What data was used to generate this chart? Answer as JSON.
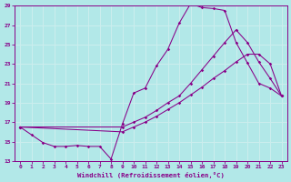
{
  "xlabel": "Windchill (Refroidissement éolien,°C)",
  "bg_color": "#b2e8e8",
  "line_color": "#880088",
  "grid_color": "#cceeee",
  "xlim": [
    -0.5,
    23.5
  ],
  "ylim": [
    13,
    29
  ],
  "yticks": [
    13,
    15,
    17,
    19,
    21,
    23,
    25,
    27,
    29
  ],
  "xticks": [
    0,
    1,
    2,
    3,
    4,
    5,
    6,
    7,
    8,
    9,
    10,
    11,
    12,
    13,
    14,
    15,
    16,
    17,
    18,
    19,
    20,
    21,
    22,
    23
  ],
  "line1_x": [
    0,
    1,
    2,
    3,
    4,
    5,
    6,
    7,
    8,
    9,
    10,
    11,
    12,
    13,
    14,
    15,
    16,
    17,
    18,
    19,
    20,
    21,
    22,
    23
  ],
  "line1_y": [
    16.5,
    15.7,
    14.9,
    14.5,
    14.5,
    14.6,
    14.5,
    14.5,
    13.2,
    16.8,
    20.0,
    20.5,
    22.8,
    24.5,
    27.2,
    29.2,
    28.8,
    28.7,
    28.5,
    25.2,
    23.1,
    21.0,
    20.5,
    19.7
  ],
  "line2_x": [
    0,
    9,
    10,
    11,
    12,
    13,
    14,
    15,
    16,
    17,
    18,
    19,
    20,
    21,
    22,
    23
  ],
  "line2_y": [
    16.5,
    16.5,
    17.0,
    17.5,
    18.2,
    19.0,
    19.7,
    21.0,
    22.4,
    23.8,
    25.2,
    26.5,
    25.2,
    23.2,
    21.5,
    19.7
  ],
  "line3_x": [
    0,
    9,
    10,
    11,
    12,
    13,
    14,
    15,
    16,
    17,
    18,
    19,
    20,
    21,
    22,
    23
  ],
  "line3_y": [
    16.5,
    16.0,
    16.5,
    17.0,
    17.6,
    18.3,
    19.0,
    19.8,
    20.6,
    21.5,
    22.3,
    23.2,
    24.0,
    24.0,
    23.0,
    19.7
  ]
}
